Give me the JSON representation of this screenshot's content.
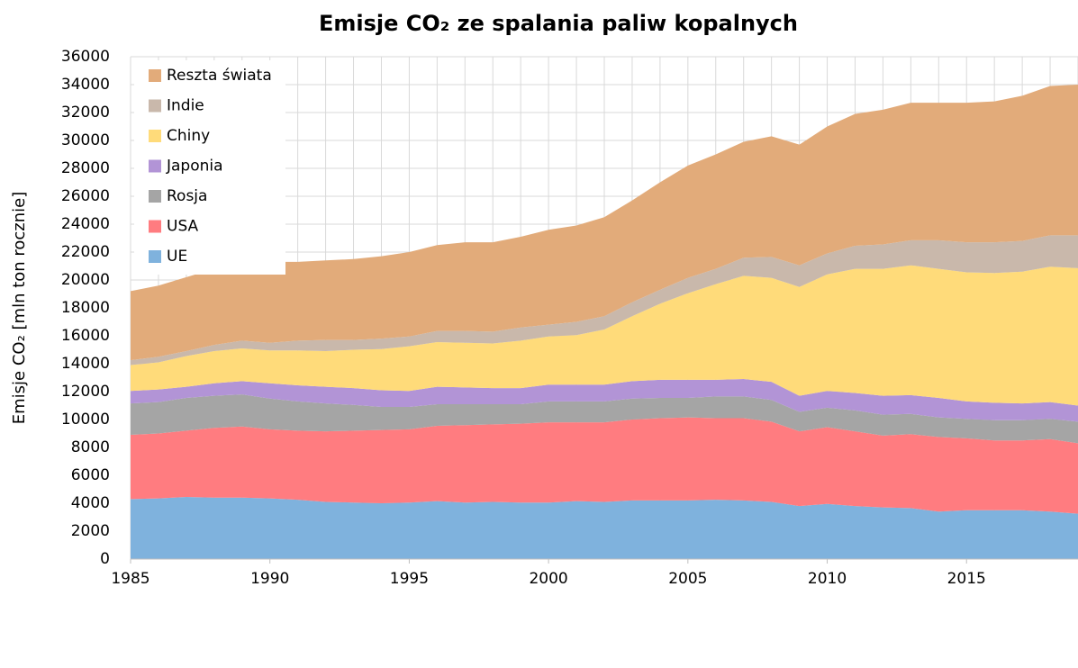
{
  "chart_data": {
    "type": "stacked_area",
    "title": "Emisje CO₂ ze spalania paliw kopalnych",
    "y_label": "Emisje CO₂ [mln ton rocznie]",
    "x": [
      1985,
      1986,
      1987,
      1988,
      1989,
      1990,
      1991,
      1992,
      1993,
      1994,
      1995,
      1996,
      1997,
      1998,
      1999,
      2000,
      2001,
      2002,
      2003,
      2004,
      2005,
      2006,
      2007,
      2008,
      2009,
      2010,
      2011,
      2012,
      2013,
      2014,
      2015,
      2016,
      2017,
      2018,
      2019
    ],
    "xlim": [
      1985,
      2019
    ],
    "xticks": [
      1985,
      1990,
      1995,
      2000,
      2005,
      2010,
      2015
    ],
    "ylim": [
      0,
      36000
    ],
    "yticks": [
      0,
      2000,
      4000,
      6000,
      8000,
      10000,
      12000,
      14000,
      16000,
      18000,
      20000,
      22000,
      24000,
      26000,
      28000,
      30000,
      32000,
      34000,
      36000
    ],
    "grid": true,
    "legend": "upper left",
    "series": [
      {
        "name": "UE",
        "color": "#7fb2dd",
        "values": [
          4300,
          4350,
          4450,
          4400,
          4400,
          4350,
          4250,
          4100,
          4050,
          4000,
          4050,
          4150,
          4050,
          4100,
          4050,
          4050,
          4150,
          4100,
          4200,
          4200,
          4200,
          4250,
          4200,
          4100,
          3800,
          3950,
          3800,
          3700,
          3650,
          3400,
          3500,
          3500,
          3500,
          3400,
          3250
        ]
      },
      {
        "name": "USA",
        "color": "#ff7c80",
        "values": [
          4600,
          4650,
          4750,
          5000,
          5100,
          4950,
          4950,
          5050,
          5150,
          5250,
          5250,
          5400,
          5550,
          5550,
          5650,
          5750,
          5650,
          5700,
          5800,
          5900,
          5950,
          5850,
          5900,
          5750,
          5350,
          5500,
          5350,
          5150,
          5300,
          5350,
          5150,
          5000,
          5000,
          5200,
          5050
        ]
      },
      {
        "name": "Rosja",
        "color": "#a5a5a5",
        "values": [
          2250,
          2250,
          2350,
          2300,
          2300,
          2200,
          2100,
          2000,
          1850,
          1650,
          1600,
          1550,
          1500,
          1450,
          1400,
          1500,
          1500,
          1500,
          1500,
          1450,
          1400,
          1550,
          1550,
          1550,
          1400,
          1400,
          1500,
          1500,
          1450,
          1400,
          1400,
          1450,
          1450,
          1450,
          1550
        ]
      },
      {
        "name": "Japonia",
        "color": "#b294d6",
        "values": [
          900,
          900,
          800,
          900,
          950,
          1100,
          1150,
          1200,
          1200,
          1200,
          1150,
          1250,
          1200,
          1150,
          1150,
          1200,
          1200,
          1200,
          1250,
          1300,
          1300,
          1200,
          1250,
          1300,
          1150,
          1200,
          1250,
          1350,
          1350,
          1400,
          1250,
          1250,
          1200,
          1200,
          1150
        ]
      },
      {
        "name": "Chiny",
        "color": "#ffdb7a",
        "values": [
          1850,
          1950,
          2200,
          2300,
          2350,
          2350,
          2500,
          2550,
          2750,
          2950,
          3200,
          3200,
          3200,
          3200,
          3400,
          3450,
          3550,
          3950,
          4650,
          5450,
          6200,
          6850,
          7400,
          7450,
          7800,
          8350,
          8900,
          9100,
          9300,
          9250,
          9250,
          9300,
          9450,
          9700,
          9850
        ]
      },
      {
        "name": "Indie",
        "color": "#c9b8ab",
        "values": [
          350,
          400,
          350,
          450,
          550,
          550,
          700,
          800,
          700,
          750,
          700,
          800,
          850,
          850,
          950,
          850,
          950,
          950,
          1000,
          1000,
          1100,
          1100,
          1300,
          1500,
          1550,
          1500,
          1650,
          1750,
          1800,
          2050,
          2150,
          2200,
          2200,
          2250,
          2350
        ]
      },
      {
        "name": "Reszta świata",
        "color": "#e2ab7a",
        "values": [
          4950,
          5100,
          5300,
          5450,
          5550,
          5800,
          5650,
          5700,
          5800,
          5900,
          6050,
          6150,
          6350,
          6400,
          6500,
          6800,
          6900,
          7100,
          7300,
          7700,
          8050,
          8200,
          8300,
          8650,
          8650,
          9100,
          9450,
          9650,
          9850,
          9850,
          10000,
          10100,
          10400,
          10700,
          10800
        ]
      }
    ]
  }
}
